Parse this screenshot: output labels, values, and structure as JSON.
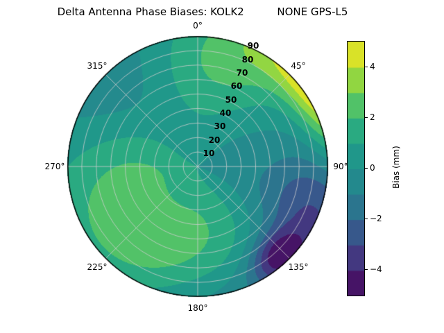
{
  "title": "Delta Antenna Phase Biases: KOLK2          NONE GPS-L5",
  "polar": {
    "angular_labels": [
      {
        "az": 0,
        "text": "0°"
      },
      {
        "az": 45,
        "text": "45°"
      },
      {
        "az": 90,
        "text": "90°"
      },
      {
        "az": 135,
        "text": "135°"
      },
      {
        "az": 180,
        "text": "180°"
      },
      {
        "az": 225,
        "text": "225°"
      },
      {
        "az": 270,
        "text": "270°"
      },
      {
        "az": 315,
        "text": "315°"
      }
    ],
    "radial_labels": [
      {
        "r": 90,
        "text": "90"
      },
      {
        "r": 80,
        "text": "80"
      },
      {
        "r": 70,
        "text": "70"
      },
      {
        "r": 60,
        "text": "60"
      },
      {
        "r": 50,
        "text": "50"
      },
      {
        "r": 40,
        "text": "40"
      },
      {
        "r": 30,
        "text": "30"
      },
      {
        "r": 20,
        "text": "20"
      },
      {
        "r": 10,
        "text": "10"
      }
    ]
  },
  "colorbar": {
    "label": "Bias (mm)",
    "ticks": [
      {
        "v": 4,
        "text": "4"
      },
      {
        "v": 2,
        "text": "2"
      },
      {
        "v": 0,
        "text": "0"
      },
      {
        "v": -2,
        "text": "−2"
      },
      {
        "v": -4,
        "text": "−4"
      }
    ],
    "range": [
      -5,
      5
    ],
    "colormap": "viridis"
  },
  "chart_data": {
    "type": "heatmap",
    "projection": "polar",
    "title": "Delta Antenna Phase Biases: KOLK2",
    "series_label": "NONE GPS-L5",
    "angular_ticks_deg": [
      0,
      45,
      90,
      135,
      180,
      225,
      270,
      315
    ],
    "radial_ticks": [
      10,
      20,
      30,
      40,
      50,
      60,
      70,
      80,
      90
    ],
    "radial_max": 90,
    "value_label": "Bias (mm)",
    "value_range": [
      -5,
      5
    ],
    "level_step": 1,
    "field": {
      "base": 0.4,
      "blobs": [
        {
          "az": 58,
          "f": 1.1,
          "amp": 5.2,
          "sa": 20,
          "sr": 0.16
        },
        {
          "az": 25,
          "f": 0.9,
          "amp": 1.3,
          "sa": 20,
          "sr": 0.28
        },
        {
          "az": 350,
          "f": 0.8,
          "amp": 1.8,
          "sa": 30,
          "sr": 0.32
        },
        {
          "az": 265,
          "f": 0.5,
          "amp": 1.8,
          "sa": 40,
          "sr": 0.38
        },
        {
          "az": 215,
          "f": 0.85,
          "amp": 1.6,
          "sa": 30,
          "sr": 0.3
        },
        {
          "az": 170,
          "f": 0.45,
          "amp": 1.4,
          "sa": 35,
          "sr": 0.3
        },
        {
          "az": 112,
          "f": 0.95,
          "amp": -3.2,
          "sa": 22,
          "sr": 0.3
        },
        {
          "az": 138,
          "f": 0.92,
          "amp": -3.5,
          "sa": 10,
          "sr": 0.12
        },
        {
          "az": 320,
          "f": 0.85,
          "amp": -2.3,
          "sa": 28,
          "sr": 0.35
        },
        {
          "az": 180,
          "f": 1.05,
          "amp": -1.3,
          "sa": 35,
          "sr": 0.2
        },
        {
          "az": 90,
          "f": 0.35,
          "amp": -0.8,
          "sa": 40,
          "sr": 0.4
        }
      ]
    }
  }
}
